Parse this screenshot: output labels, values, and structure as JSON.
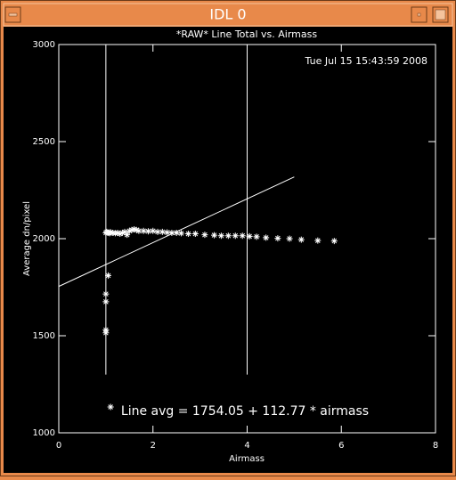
{
  "window": {
    "title": "IDL 0"
  },
  "chart_data": {
    "type": "scatter",
    "title": "*RAW* Line Total vs. Airmass",
    "timestamp": "Tue Jul 15 15:43:59 2008",
    "x_label": "Airmass",
    "y_label": "Average dn/pixel",
    "annotation": "Line avg = 1754.05 + 112.77 * airmass",
    "xlim": [
      0,
      8
    ],
    "xticks": [
      0,
      2,
      4,
      6,
      8
    ],
    "ylim": [
      1000,
      3000
    ],
    "yticks": [
      1000,
      1500,
      2000,
      2500,
      3000
    ],
    "vertical_lines": {
      "x": [
        1,
        4
      ],
      "y": [
        3000,
        1300
      ]
    },
    "series": [
      {
        "type": "scatter",
        "color": "#ffffff",
        "x": [
          1.0,
          1.02,
          1.04,
          1.06,
          1.08,
          1.1,
          1.15,
          1.2,
          1.25,
          1.3,
          1.35,
          1.4,
          1.45,
          1.5,
          1.55,
          1.6,
          1.65,
          1.7,
          1.8,
          1.9,
          2.0,
          2.1,
          2.2,
          2.3,
          2.4,
          2.5,
          2.6,
          2.75,
          2.9,
          3.1,
          3.3,
          3.45,
          3.6,
          3.75,
          3.9,
          4.05,
          4.2,
          4.4,
          4.65,
          4.9,
          5.15,
          5.5,
          5.85,
          1.0,
          1.0,
          1.0,
          1.0,
          1.05,
          1.1
        ],
        "values": [
          2030,
          2035,
          2030,
          2032,
          2028,
          2033,
          2030,
          2028,
          2030,
          2025,
          2030,
          2035,
          2020,
          2040,
          2045,
          2048,
          2045,
          2040,
          2040,
          2038,
          2040,
          2035,
          2035,
          2032,
          2030,
          2030,
          2028,
          2025,
          2025,
          2020,
          2018,
          2015,
          2015,
          2015,
          2015,
          2012,
          2010,
          2005,
          2002,
          2000,
          1995,
          1990,
          1988,
          1715,
          1675,
          1530,
          1515,
          1810,
          1133
        ]
      },
      {
        "type": "line",
        "color": "#ffffff",
        "x": [
          0,
          5
        ],
        "values": [
          1754.05,
          2317.9
        ]
      }
    ]
  }
}
